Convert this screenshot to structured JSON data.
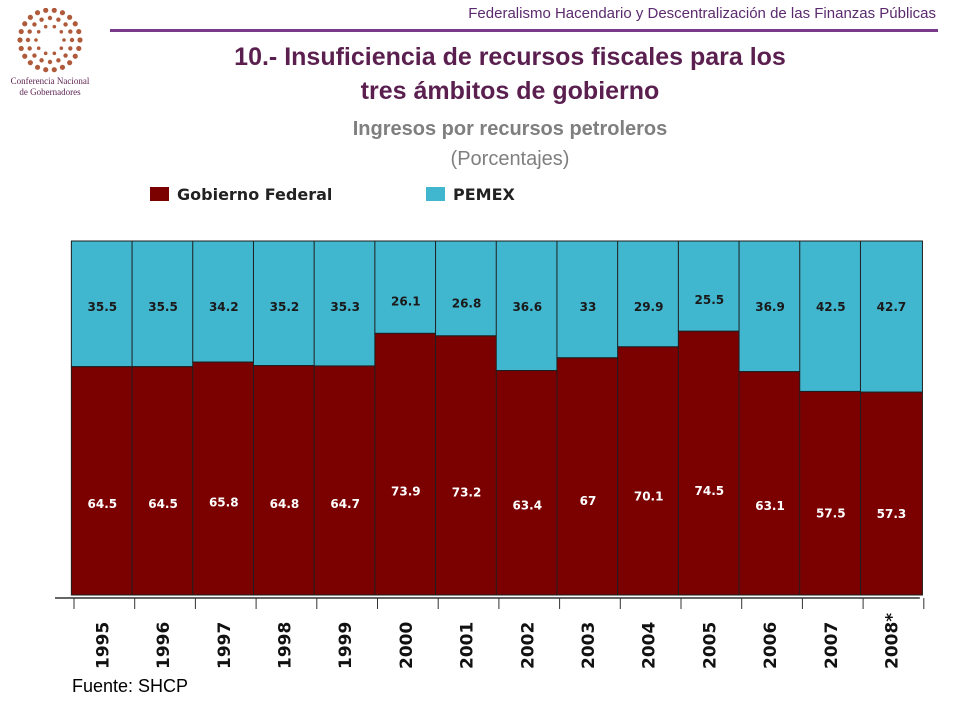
{
  "header": {
    "text": "Federalismo Hacendario y Descentralización de las Finanzas Públicas"
  },
  "logo": {
    "name": "conago-logo",
    "line1": "Conferencia Nacional",
    "line2": "de Gobernadores",
    "color": "#b05a3c"
  },
  "slide": {
    "title_line1": "10.- Insuficiencia de recursos fiscales para los",
    "title_line2": "tres ámbitos de gobierno",
    "subtitle": "Ingresos por recursos petroleros",
    "units": "(Porcentajes)"
  },
  "chart_data": {
    "type": "bar",
    "stacked": true,
    "categories": [
      "1995",
      "1996",
      "1997",
      "1998",
      "1999",
      "2000",
      "2001",
      "2002",
      "2003",
      "2004",
      "2005",
      "2006",
      "2007",
      "2008*"
    ],
    "series": [
      {
        "name": "Gobierno Federal",
        "color": "#7b0000",
        "values": [
          64.5,
          64.5,
          65.8,
          64.8,
          64.7,
          73.9,
          73.2,
          63.4,
          67,
          70.1,
          74.5,
          63.1,
          57.5,
          57.3
        ],
        "labels": [
          "64.5",
          "64.5",
          "65.8",
          "64.8",
          "64.7",
          "73.9",
          "73.2",
          "63.4",
          "67",
          "70.1",
          "74.5",
          "63.1",
          "57.5",
          "57.3"
        ]
      },
      {
        "name": "PEMEX",
        "color": "#41b6cf",
        "values": [
          35.5,
          35.5,
          34.2,
          35.2,
          35.3,
          26.1,
          26.8,
          36.6,
          33,
          29.9,
          25.5,
          36.9,
          42.5,
          42.7
        ],
        "labels": [
          "35.5",
          "35.5",
          "34.2",
          "35.2",
          "35.3",
          "26.1",
          "26.8",
          "36.6",
          "33",
          "29.9",
          "25.5",
          "36.9",
          "42.5",
          "42.7"
        ]
      }
    ],
    "ylim": [
      0,
      100
    ],
    "legend_position": "top-left",
    "x_labels_rotated": true
  },
  "source": {
    "text": "Fuente:  SHCP"
  }
}
